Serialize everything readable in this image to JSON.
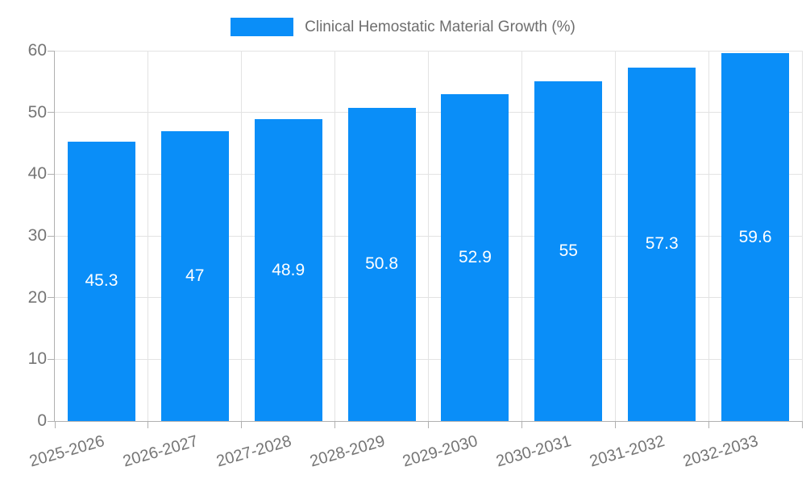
{
  "legend": {
    "label": "Clinical Hemostatic Material Growth (%)"
  },
  "chart_data": {
    "type": "bar",
    "title": "Clinical Hemostatic Material Growth (%)",
    "categories": [
      "2025-2026",
      "2026-2027",
      "2027-2028",
      "2028-2029",
      "2029-2030",
      "2030-2031",
      "2031-2032",
      "2032-2033"
    ],
    "values": [
      45.3,
      47,
      48.9,
      50.8,
      52.9,
      55,
      57.3,
      59.6
    ],
    "value_labels": [
      "45.3",
      "47",
      "48.9",
      "50.8",
      "52.9",
      "55",
      "57.3",
      "59.6"
    ],
    "xlabel": "",
    "ylabel": "",
    "ylim": [
      0,
      60
    ],
    "ytick_interval": 10,
    "ytick_labels": [
      "0",
      "10",
      "20",
      "30",
      "40",
      "50",
      "60"
    ],
    "grid": true,
    "legend_position": "top-center",
    "colors": {
      "bar": "#0a8ef8",
      "bar_value_text": "#ffffff",
      "axis_text": "#757575",
      "legend_text": "#6e6e6e",
      "gridline": "#e3e3e3",
      "axis_line": "#b0b0b0"
    }
  }
}
